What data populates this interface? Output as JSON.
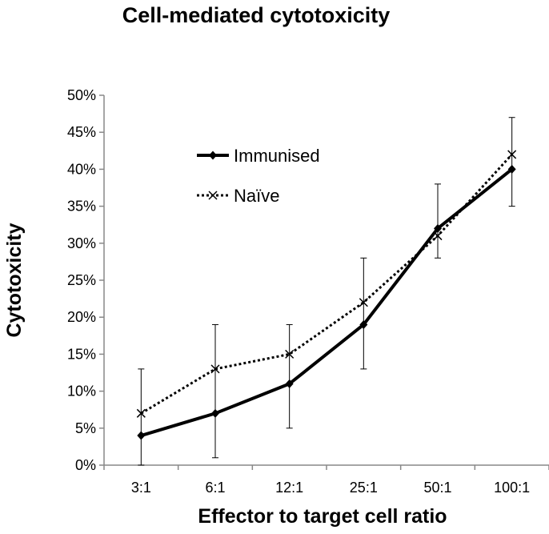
{
  "chart_data": {
    "type": "line",
    "title": "Cell-mediated cytotoxicity",
    "xlabel": "Effector to target cell ratio",
    "ylabel": "Cytotoxicity",
    "categories": [
      "3:1",
      "6:1",
      "12:1",
      "25:1",
      "50:1",
      "100:1"
    ],
    "ylim": [
      0,
      50
    ],
    "yticks": [
      0,
      5,
      10,
      15,
      20,
      25,
      30,
      35,
      40,
      45,
      50
    ],
    "ytick_labels": [
      "0%",
      "5%",
      "10%",
      "15%",
      "20%",
      "25%",
      "30%",
      "35%",
      "40%",
      "45%",
      "50%"
    ],
    "grid": false,
    "legend_position": "upper-left",
    "series": [
      {
        "name": "Immunised",
        "values": [
          4,
          7,
          11,
          19,
          32,
          40
        ],
        "line_style": "solid",
        "marker": "diamond",
        "color": "#000000"
      },
      {
        "name": "Naïve",
        "values": [
          7,
          13,
          15,
          22,
          31,
          42
        ],
        "line_style": "dotted",
        "marker": "x",
        "color": "#000000",
        "error_plus": [
          6,
          6,
          4,
          6,
          7,
          5
        ],
        "error_minus": [
          7,
          12,
          10,
          9,
          3,
          7
        ]
      }
    ]
  }
}
